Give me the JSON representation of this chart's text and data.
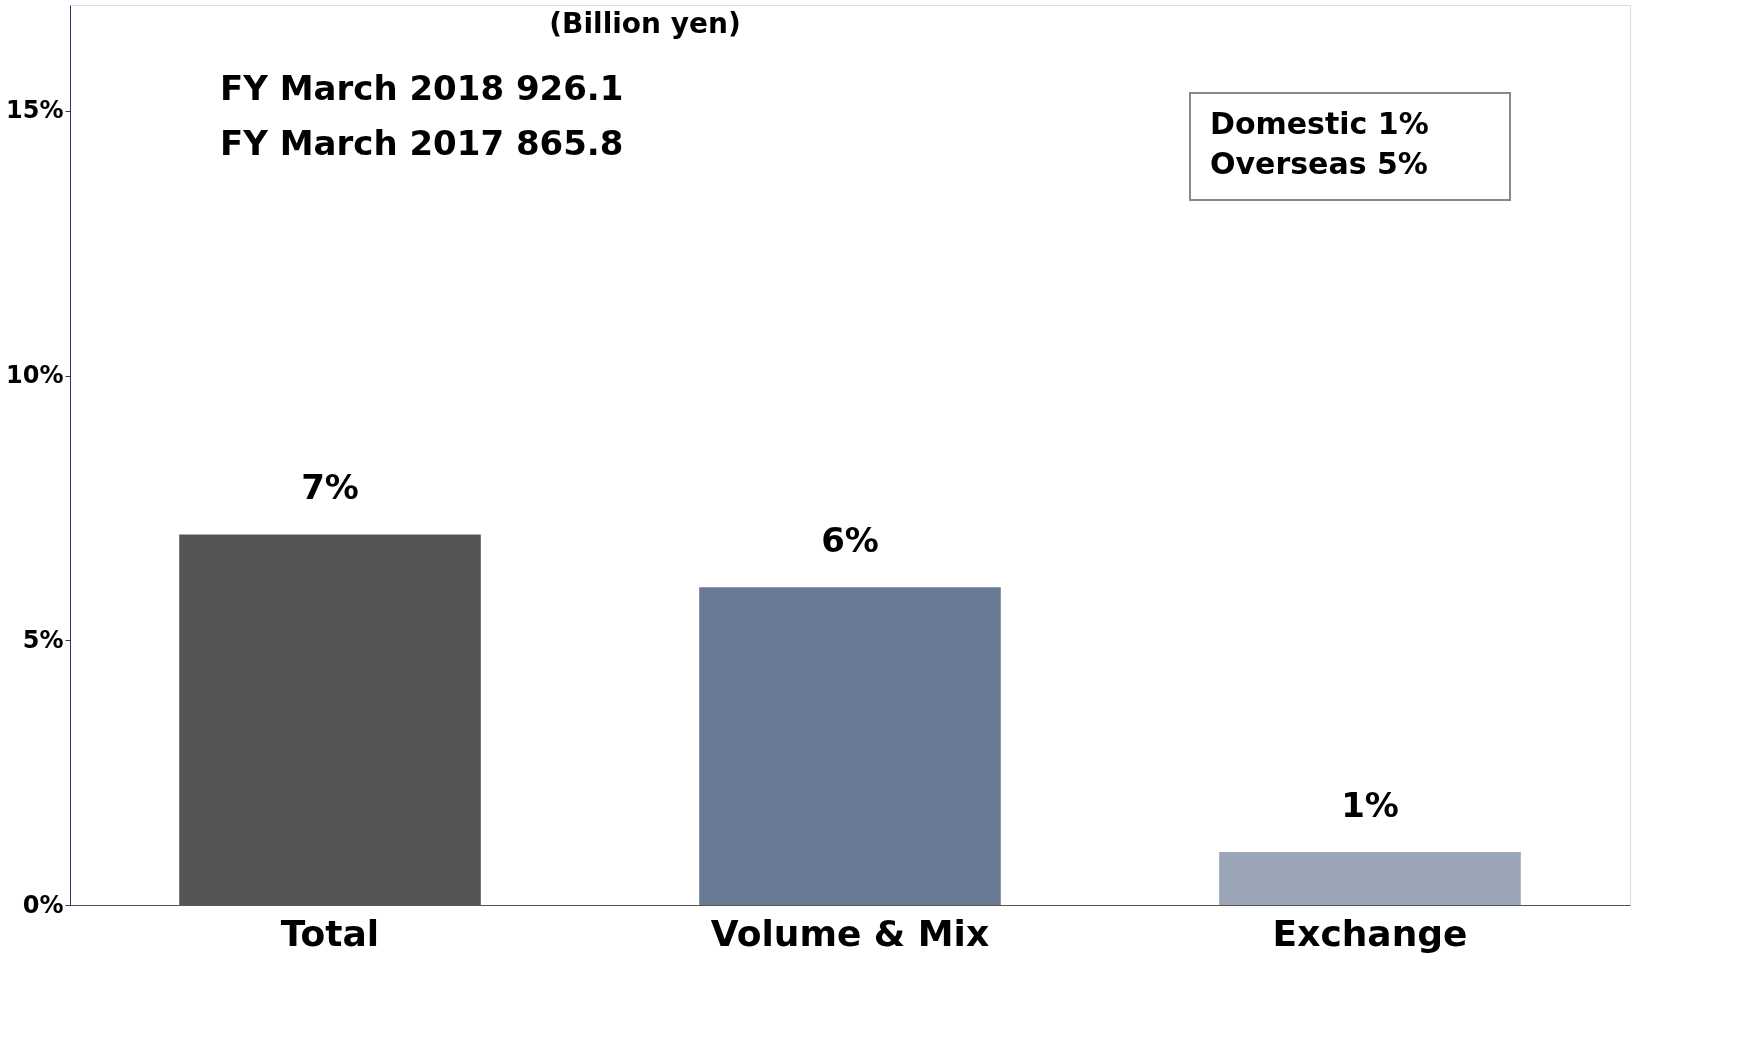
{
  "chart_data": {
    "type": "bar",
    "categories": [
      "Total",
      "Volume & Mix",
      "Exchange"
    ],
    "values": [
      7,
      6,
      1
    ],
    "colors": [
      "#555555",
      "#6a7a95",
      "#9aa6b8"
    ],
    "value_labels": [
      "7%",
      "6%",
      "1%"
    ],
    "ylim": [
      0,
      17
    ],
    "yticks": [
      {
        "value": 0,
        "label": "0%"
      },
      {
        "value": 5,
        "label": "5%"
      },
      {
        "value": 10,
        "label": "10%"
      },
      {
        "value": 15,
        "label": "15%"
      }
    ],
    "grid": false,
    "annotations": [
      "(Billion yen)",
      "FY March 2018   926.1",
      "FY March 2017   865.8",
      "Domestic  1%",
      "Overseas  5%"
    ]
  }
}
